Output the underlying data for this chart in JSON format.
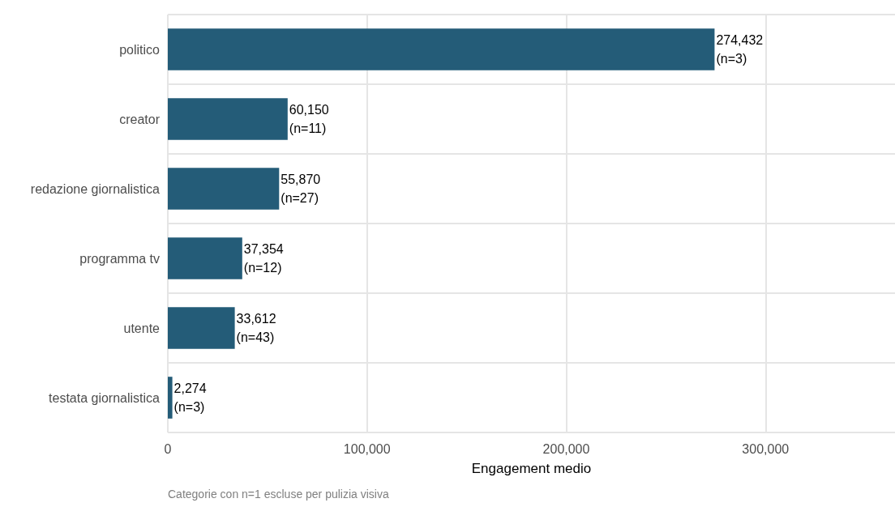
{
  "chart_data": {
    "type": "bar",
    "orientation": "horizontal",
    "xlabel": "Engagement medio",
    "categories": [
      "politico",
      "creator",
      "redazione giornalistica",
      "programma tv",
      "utente",
      "testata giornalistica"
    ],
    "values": [
      274432,
      60150,
      55870,
      37354,
      33612,
      2274
    ],
    "value_labels": [
      "274,432\n(n=3)",
      "60,150\n(n=11)",
      "55,870\n(n=27)",
      "37,354\n(n=12)",
      "33,612\n(n=43)",
      "2,274\n(n=3)"
    ],
    "color": "#245c78",
    "xlim": [
      0,
      365000
    ],
    "xticks": [
      {
        "value": 0,
        "label": "0"
      },
      {
        "value": 100000,
        "label": "100,000"
      },
      {
        "value": 200000,
        "label": "200,000"
      },
      {
        "value": 300000,
        "label": "300,000"
      }
    ],
    "grid": true,
    "annotations": [
      "Categorie con n=1 escluse per pulizia visiva"
    ]
  }
}
